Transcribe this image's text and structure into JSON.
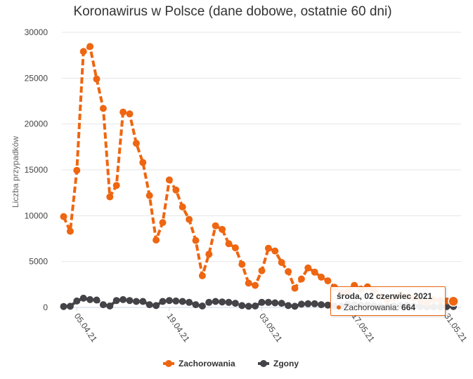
{
  "chart_data": {
    "type": "line",
    "title": "Koronawirus w Polsce (dane dobowe, ostatnie 60 dni)",
    "xlabel": "",
    "ylabel": "Liczba przypadków",
    "ylim": [
      0,
      30000
    ],
    "yticks": [
      0,
      5000,
      10000,
      15000,
      20000,
      25000,
      30000
    ],
    "xticks": [
      {
        "index": 2,
        "label": "05.04.21"
      },
      {
        "index": 16,
        "label": "19.04.21"
      },
      {
        "index": 30,
        "label": "03.05.21"
      },
      {
        "index": 44,
        "label": "17.05.21"
      },
      {
        "index": 58,
        "label": "31.05.21"
      }
    ],
    "grid": true,
    "legend_position": "bottom-center",
    "series": [
      {
        "name": "Zachorowania",
        "color": "#ee6611",
        "values": [
          9900,
          8300,
          14950,
          27900,
          28450,
          24900,
          21700,
          12050,
          13300,
          21300,
          21100,
          17900,
          15800,
          12200,
          7350,
          9250,
          13900,
          12800,
          10950,
          9600,
          7300,
          3450,
          5800,
          8900,
          8500,
          6950,
          6500,
          4700,
          2650,
          2400,
          4000,
          6450,
          6150,
          4900,
          3900,
          2100,
          3100,
          4300,
          3850,
          3300,
          2900,
          2200,
          1650,
          1700,
          2400,
          2000,
          2250,
          1800,
          1200,
          800,
          1050,
          1400,
          1200,
          1000,
          700,
          500,
          850,
          750,
          700,
          664
        ]
      },
      {
        "name": "Zgony",
        "color": "#434348",
        "values": [
          100,
          120,
          700,
          1000,
          850,
          800,
          300,
          150,
          750,
          850,
          750,
          650,
          650,
          300,
          200,
          650,
          750,
          700,
          650,
          550,
          300,
          150,
          550,
          650,
          600,
          550,
          450,
          200,
          120,
          150,
          550,
          550,
          500,
          450,
          200,
          120,
          350,
          400,
          400,
          300,
          250,
          150,
          120,
          300,
          300,
          250,
          250,
          200,
          80,
          60,
          150,
          200,
          200,
          150,
          100,
          50,
          50,
          50,
          100,
          100
        ]
      }
    ],
    "tooltip": {
      "date": "środa, 02 czerwiec 2021",
      "series_label": "Zachorowania",
      "separator": ": ",
      "value": "664"
    }
  }
}
